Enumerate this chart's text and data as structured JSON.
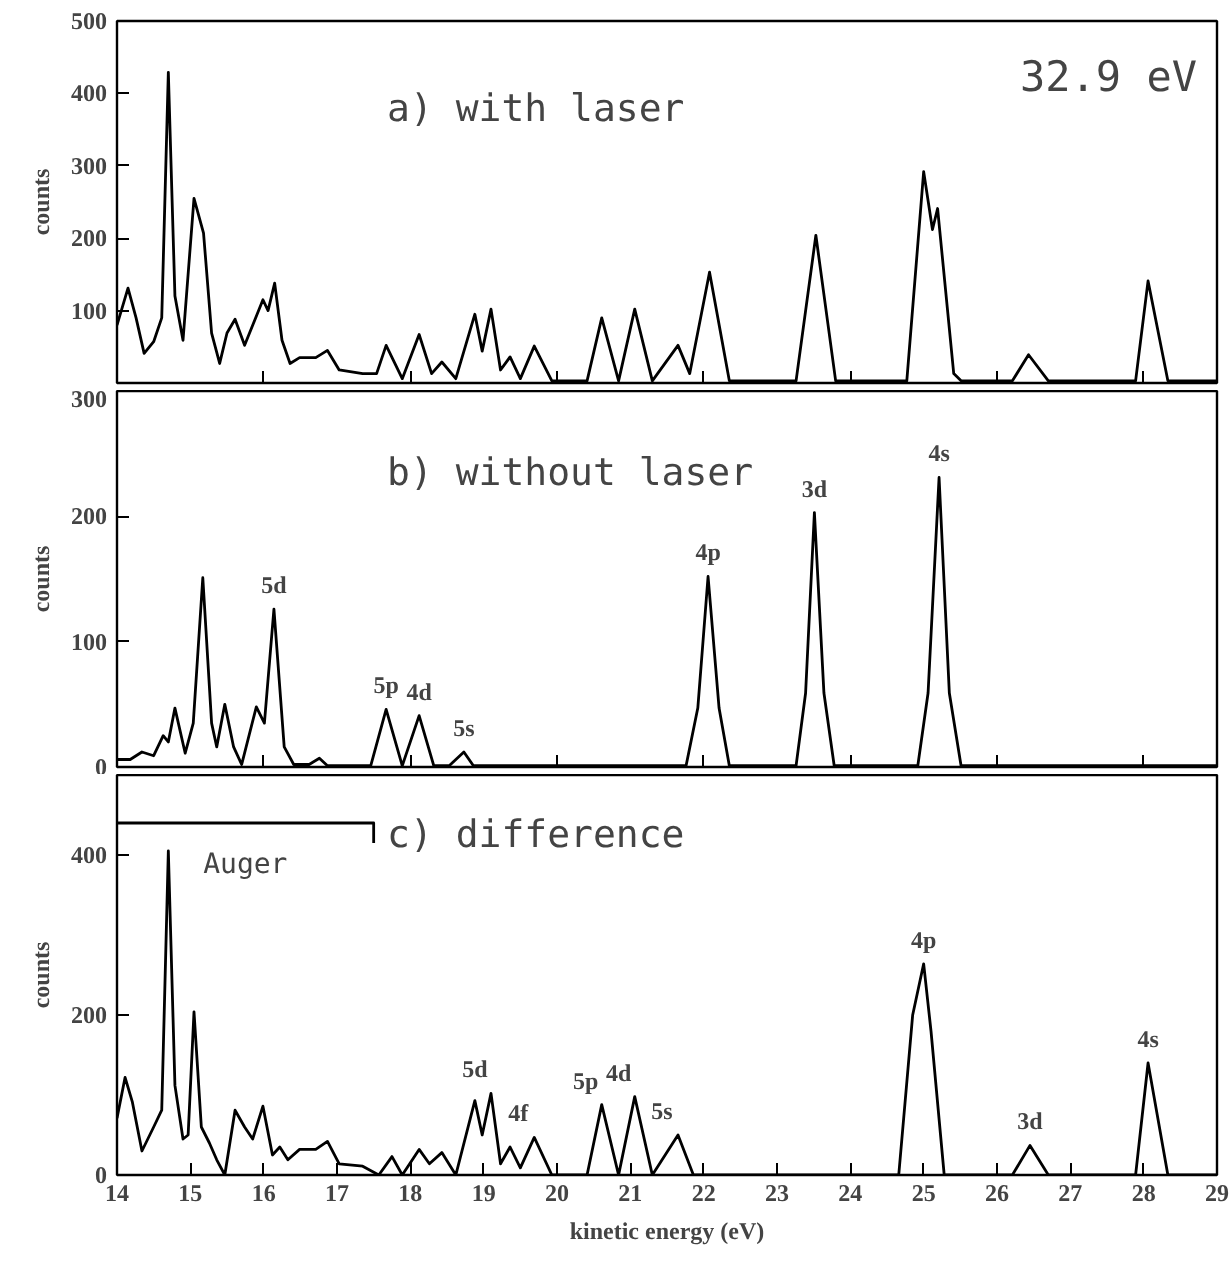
{
  "chart_data": [
    {
      "type": "line",
      "ylabel": "counts",
      "xlim": [
        14,
        29
      ],
      "ylim": [
        0,
        500
      ],
      "yticks": [
        {
          "value": 0,
          "label": null
        },
        100,
        200,
        300,
        400,
        500
      ],
      "tick_labels": "y",
      "grid": false,
      "legend": false,
      "marker": "none",
      "line_style": "solid",
      "annotations": [
        "a) with laser",
        "32.9 eV"
      ],
      "series": [
        {
          "color": "#000000",
          "x": [
            14.0,
            14.15,
            14.26,
            14.37,
            14.5,
            14.61,
            14.7,
            14.79,
            14.9,
            15.05,
            15.18,
            15.29,
            15.4,
            15.5,
            15.61,
            15.74,
            15.99,
            16.06,
            16.15,
            16.25,
            16.36,
            16.49,
            16.71,
            16.87,
            17.03,
            17.35,
            17.54,
            17.67,
            17.89,
            18.12,
            18.29,
            18.43,
            18.62,
            18.88,
            18.98,
            19.1,
            19.23,
            19.36,
            19.5,
            19.69,
            19.93,
            20.41,
            20.61,
            20.84,
            21.06,
            21.3,
            21.65,
            21.81,
            22.08,
            22.35,
            23.26,
            23.53,
            23.8,
            24.77,
            25.0,
            25.12,
            25.19,
            25.41,
            25.51,
            26.21,
            26.43,
            26.7,
            27.89,
            28.06,
            28.33,
            29.0
          ],
          "values": [
            80,
            131,
            90,
            41,
            57,
            90,
            429,
            120,
            59,
            255,
            207,
            69,
            27,
            69,
            88,
            52,
            115,
            100,
            138,
            59,
            27,
            35,
            35,
            45,
            18,
            13,
            13,
            52,
            6,
            67,
            13,
            29,
            6,
            95,
            44,
            102,
            18,
            36,
            6,
            51,
            3,
            3,
            90,
            3,
            102,
            3,
            52,
            13,
            153,
            3,
            3,
            204,
            3,
            3,
            292,
            212,
            241,
            13,
            3,
            3,
            39,
            3,
            3,
            141,
            3,
            3
          ]
        }
      ]
    },
    {
      "type": "line",
      "ylabel": "counts",
      "xlim": [
        14,
        29
      ],
      "ylim": [
        0,
        300
      ],
      "yticks": [
        0,
        100,
        200,
        300
      ],
      "tick_labels": "y",
      "grid": false,
      "legend": false,
      "marker": "none",
      "line_style": "solid",
      "annotations": [
        "b) without laser",
        {
          "text": "5d",
          "x": 16.14,
          "y": 126
        },
        {
          "text": "5p",
          "x": 17.67,
          "y": 46
        },
        {
          "text": "4d",
          "x": 18.12,
          "y": 41
        },
        {
          "text": "5s",
          "x": 18.73,
          "y": 12
        },
        {
          "text": "4p",
          "x": 22.06,
          "y": 152
        },
        {
          "text": "3d",
          "x": 23.51,
          "y": 203
        },
        {
          "text": "4s",
          "x": 25.21,
          "y": 231
        }
      ],
      "series": [
        {
          "color": "#000000",
          "x": [
            14.0,
            14.18,
            14.34,
            14.5,
            14.63,
            14.7,
            14.79,
            14.93,
            15.04,
            15.17,
            15.29,
            15.36,
            15.47,
            15.59,
            15.7,
            15.9,
            16.01,
            16.14,
            16.28,
            16.41,
            16.62,
            16.76,
            16.87,
            17.46,
            17.67,
            17.89,
            18.12,
            18.32,
            18.53,
            18.73,
            18.86,
            21.76,
            21.92,
            22.06,
            22.21,
            22.35,
            23.26,
            23.39,
            23.51,
            23.64,
            23.78,
            24.92,
            25.06,
            25.21,
            25.35,
            25.51,
            29.0
          ],
          "values": [
            6,
            6,
            12,
            9,
            25,
            20,
            47,
            11,
            35,
            151,
            35,
            16,
            50,
            16,
            2,
            48,
            35,
            126,
            16,
            2,
            2,
            7,
            1,
            1,
            46,
            1,
            41,
            1,
            1,
            12,
            1,
            1,
            47,
            152,
            47,
            1,
            1,
            59,
            203,
            59,
            1,
            1,
            59,
            231,
            59,
            1,
            1
          ]
        }
      ]
    },
    {
      "type": "line",
      "xlabel": "kinetic energy (eV)",
      "ylabel": "counts",
      "xlim": [
        14,
        29
      ],
      "xticks": [
        14,
        15,
        16,
        17,
        18,
        19,
        20,
        21,
        22,
        23,
        24,
        25,
        26,
        27,
        28,
        29
      ],
      "ylim": [
        0,
        500
      ],
      "yticks": [
        0,
        200,
        400
      ],
      "grid": false,
      "legend": false,
      "marker": "none",
      "line_style": "solid",
      "annotations": [
        "c) difference",
        {
          "text": "5d",
          "x": 19.1,
          "y": 102
        },
        {
          "text": "4f",
          "x": 19.69,
          "y": 47
        },
        {
          "text": "5p",
          "x": 20.61,
          "y": 88
        },
        {
          "text": "4d",
          "x": 21.06,
          "y": 98
        },
        {
          "text": "5s",
          "x": 21.65,
          "y": 50
        },
        {
          "text": "4p",
          "x": 25.0,
          "y": 264
        },
        {
          "text": "3d",
          "x": 26.45,
          "y": 37
        },
        {
          "text": "4s",
          "x": 28.06,
          "y": 140
        }
      ],
      "series": [
        {
          "color": "#000000",
          "x": [
            14.0,
            14.11,
            14.21,
            14.34,
            14.5,
            14.61,
            14.7,
            14.79,
            14.9,
            14.97,
            15.05,
            15.15,
            15.26,
            15.36,
            15.47,
            15.61,
            15.74,
            15.85,
            15.99,
            16.12,
            16.22,
            16.33,
            16.49,
            16.71,
            16.87,
            17.03,
            17.35,
            17.57,
            17.75,
            17.89,
            18.12,
            18.26,
            18.43,
            18.62,
            18.88,
            18.98,
            19.1,
            19.23,
            19.36,
            19.5,
            19.69,
            19.93,
            20.41,
            20.61,
            20.84,
            21.06,
            21.3,
            21.65,
            21.86,
            24.66,
            24.85,
            25.0,
            25.1,
            25.28,
            26.21,
            26.45,
            26.7,
            27.89,
            28.06,
            28.33,
            29.0
          ],
          "values": [
            71,
            122,
            91,
            30,
            60,
            81,
            405,
            112,
            45,
            50,
            204,
            60,
            40,
            19,
            0,
            81,
            60,
            45,
            86,
            25,
            35,
            19,
            32,
            32,
            42,
            14,
            11,
            0,
            23,
            0,
            32,
            14,
            28,
            0,
            93,
            50,
            102,
            14,
            35,
            9,
            47,
            0,
            0,
            88,
            0,
            98,
            0,
            50,
            0,
            0,
            200,
            264,
            180,
            0,
            0,
            37,
            0,
            0,
            140,
            0,
            0
          ]
        },
        {
          "name": "Auger",
          "color": "#000000",
          "x": [
            14,
            17.5,
            17.5
          ],
          "values": [
            440,
            440,
            415
          ]
        }
      ]
    }
  ]
}
